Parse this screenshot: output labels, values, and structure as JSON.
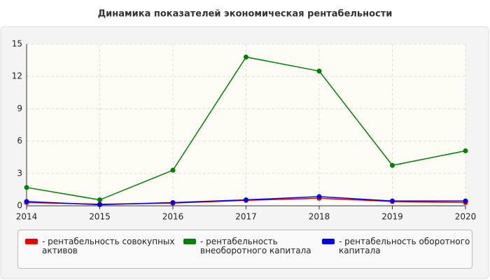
{
  "chart_data": {
    "type": "line",
    "title": "Динамика показателей экономическая рентабельности",
    "categories": [
      "2014",
      "2015",
      "2016",
      "2017",
      "2018",
      "2019",
      "2020"
    ],
    "series": [
      {
        "name": "- рентабельность совокупных активов",
        "color": "#ee0000",
        "values": [
          0.3,
          0.15,
          0.25,
          0.5,
          0.7,
          0.4,
          0.3
        ]
      },
      {
        "name": "- рентабельность внеоборотного капитала",
        "color": "#008000",
        "values": [
          1.7,
          0.55,
          3.3,
          13.8,
          12.5,
          3.75,
          5.1
        ]
      },
      {
        "name": "- рентабельность оборотного капитала",
        "color": "#0000ee",
        "values": [
          0.4,
          0.1,
          0.3,
          0.55,
          0.85,
          0.45,
          0.45
        ]
      }
    ],
    "ylim": [
      0,
      15
    ],
    "yticks": [
      0,
      3,
      6,
      9,
      12,
      15
    ],
    "grid": true
  }
}
